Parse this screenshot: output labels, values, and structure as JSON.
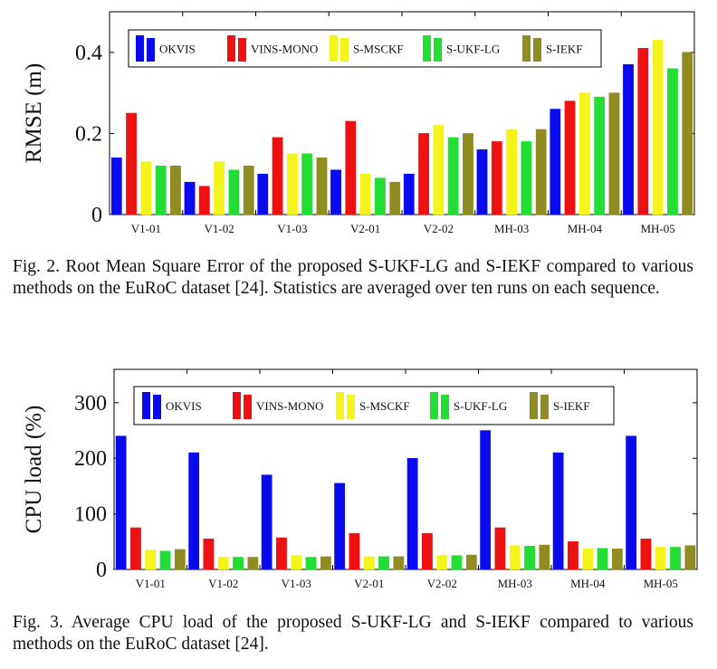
{
  "chart_data": [
    {
      "type": "bar",
      "title": "",
      "xlabel": "",
      "ylabel": "RMSE (m)",
      "ylim": [
        0,
        0.5
      ],
      "yticks": [
        0,
        0.2,
        0.4
      ],
      "ytick_labels": [
        "0",
        "0.2",
        "0.4"
      ],
      "grid": false,
      "legend_position": "top",
      "categories": [
        "V1-01",
        "V1-02",
        "V1-03",
        "V2-01",
        "V2-02",
        "MH-03",
        "MH-04",
        "MH-05"
      ],
      "series": [
        {
          "name": "OKVIS",
          "color": "#0a0aef",
          "values": [
            0.14,
            0.08,
            0.1,
            0.11,
            0.1,
            0.16,
            0.26,
            0.37
          ]
        },
        {
          "name": "VINS-MONO",
          "color": "#ee1111",
          "values": [
            0.25,
            0.07,
            0.19,
            0.23,
            0.2,
            0.18,
            0.28,
            0.41
          ]
        },
        {
          "name": "S-MSCKF",
          "color": "#f4f41a",
          "values": [
            0.13,
            0.13,
            0.15,
            0.1,
            0.22,
            0.21,
            0.3,
            0.43
          ]
        },
        {
          "name": "S-UKF-LG",
          "color": "#22dd33",
          "values": [
            0.12,
            0.11,
            0.15,
            0.09,
            0.19,
            0.18,
            0.29,
            0.36
          ]
        },
        {
          "name": "S-IEKF",
          "color": "#8f8c22",
          "values": [
            0.12,
            0.12,
            0.14,
            0.08,
            0.2,
            0.21,
            0.3,
            0.4
          ]
        }
      ],
      "caption": "Fig. 2.  Root Mean Square Error of the proposed S-UKF-LG and S-IEKF compared to various methods on the EuRoC dataset [24]. Statistics are averaged over ten runs on each sequence."
    },
    {
      "type": "bar",
      "title": "",
      "xlabel": "",
      "ylabel": "CPU load (%)",
      "ylim": [
        0,
        360
      ],
      "yticks": [
        0,
        100,
        200,
        300
      ],
      "ytick_labels": [
        "0",
        "100",
        "200",
        "300"
      ],
      "grid": false,
      "legend_position": "top",
      "categories": [
        "V1-01",
        "V1-02",
        "V1-03",
        "V2-01",
        "V2-02",
        "MH-03",
        "MH-04",
        "MH-05"
      ],
      "series": [
        {
          "name": "OKVIS",
          "color": "#0a0aef",
          "values": [
            240,
            210,
            170,
            155,
            200,
            250,
            210,
            240
          ]
        },
        {
          "name": "VINS-MONO",
          "color": "#ee1111",
          "values": [
            75,
            55,
            57,
            65,
            65,
            75,
            50,
            55
          ]
        },
        {
          "name": "S-MSCKF",
          "color": "#f4f41a",
          "values": [
            35,
            22,
            25,
            23,
            25,
            43,
            37,
            40
          ]
        },
        {
          "name": "S-UKF-LG",
          "color": "#22dd33",
          "values": [
            33,
            22,
            22,
            23,
            25,
            42,
            38,
            40
          ]
        },
        {
          "name": "S-IEKF",
          "color": "#8f8c22",
          "values": [
            36,
            22,
            23,
            23,
            26,
            44,
            37,
            43
          ]
        }
      ],
      "caption": "Fig. 3.  Average CPU load of the proposed S-UKF-LG and S-IEKF compared to various methods on the EuRoC dataset [24]."
    }
  ]
}
